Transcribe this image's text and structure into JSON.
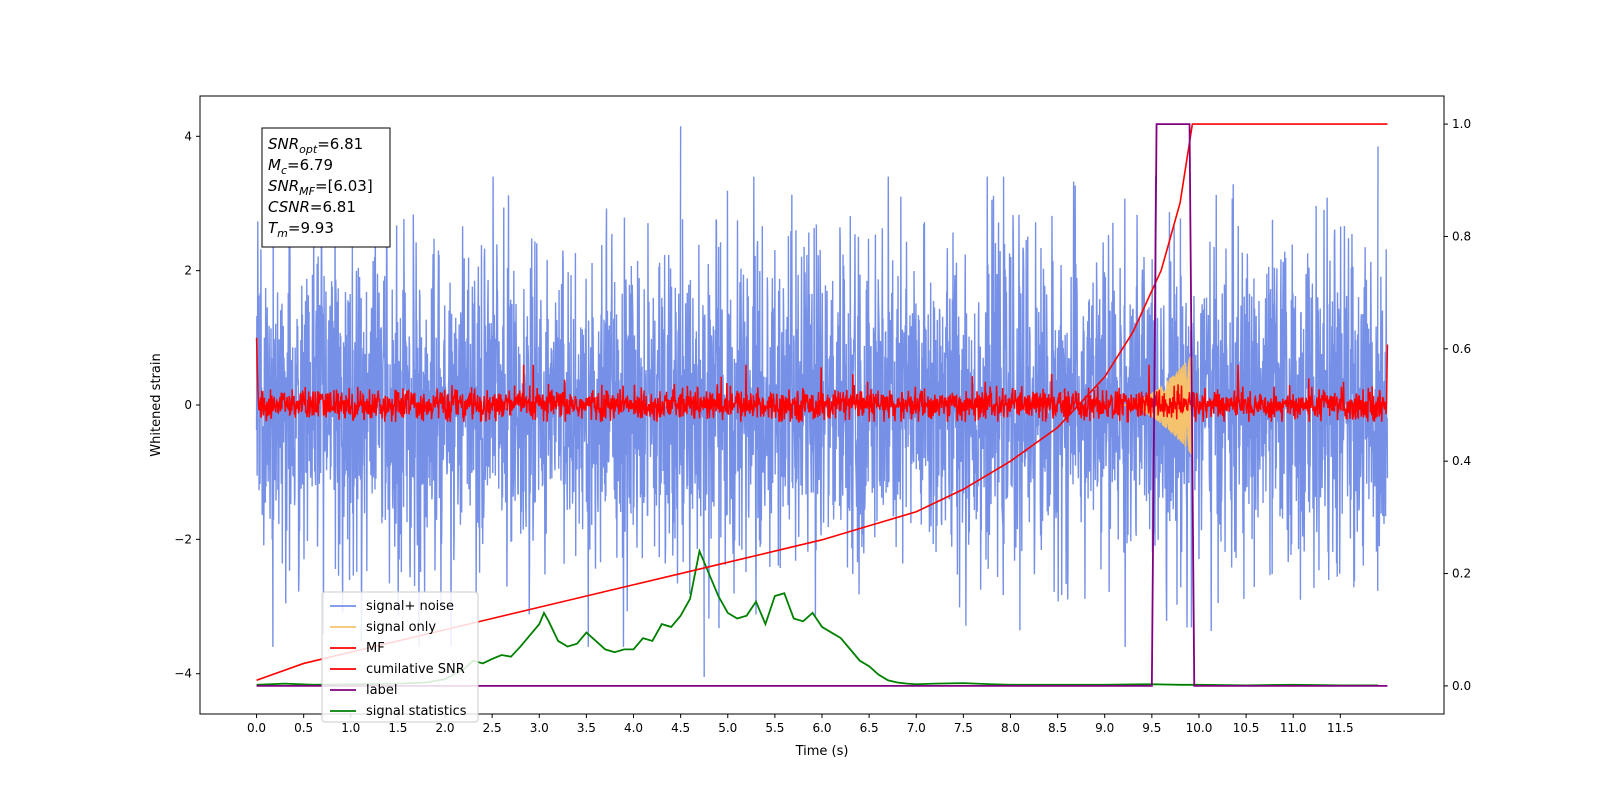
{
  "chart_data": {
    "type": "line",
    "xlabel": "Time (s)",
    "ylabel": "Whitened strain",
    "xlim": [
      -0.6,
      12.6
    ],
    "ylim": [
      -4.6,
      4.6
    ],
    "y2lim": [
      -0.05,
      1.05
    ],
    "x_ticks": [
      "0.0",
      "0.5",
      "1.0",
      "1.5",
      "2.0",
      "2.5",
      "3.0",
      "3.5",
      "4.0",
      "4.5",
      "5.0",
      "5.5",
      "6.0",
      "6.5",
      "7.0",
      "7.5",
      "8.0",
      "8.5",
      "9.0",
      "9.5",
      "10.0",
      "10.5",
      "11.0",
      "11.5"
    ],
    "y_ticks": [
      "4",
      "2",
      "0",
      "−2",
      "−4"
    ],
    "y2_ticks": [
      "1.0",
      "0.8",
      "0.6",
      "0.4",
      "0.2",
      "0.0"
    ],
    "grid": false,
    "legend_position": "lower-left",
    "info_box": [
      {
        "main": "SNR",
        "sub": "opt",
        "rest": "=6.81"
      },
      {
        "main": "M",
        "sub": "c",
        "rest": "=6.79"
      },
      {
        "main": "SNR",
        "sub": "MF",
        "rest": "=[6.03]"
      },
      {
        "main": "CSNR",
        "sub": "",
        "rest": "=6.81"
      },
      {
        "main": "T",
        "sub": "m",
        "rest": "=9.93"
      }
    ],
    "series": [
      {
        "name": "signal+ noise",
        "color": "#7590e6",
        "axis": "left",
        "noise_std": 1.2,
        "x_range": [
          0.0,
          12.0
        ],
        "spikes": [
          [
            4.5,
            4.15
          ],
          [
            4.75,
            -4.05
          ],
          [
            11.9,
            3.85
          ]
        ]
      },
      {
        "name": "signal only",
        "color": "#f5c26e",
        "axis": "left",
        "chirp": {
          "start": 9.2,
          "end": 9.93,
          "peak_amplitude": 0.75
        }
      },
      {
        "name": "MF",
        "color": "#ff0000",
        "axis": "left",
        "noise_std": 0.12,
        "start_value": 1.0,
        "end_value": 0.9
      },
      {
        "name": "cumilative SNR",
        "color": "#ff0000",
        "axis": "right",
        "x": [
          0.0,
          0.5,
          1.0,
          1.5,
          2.0,
          2.5,
          3.0,
          3.5,
          4.0,
          4.5,
          5.0,
          5.5,
          6.0,
          6.5,
          7.0,
          7.5,
          8.0,
          8.5,
          9.0,
          9.3,
          9.6,
          9.8,
          9.93,
          10.0,
          12.0
        ],
        "values": [
          0.01,
          0.04,
          0.06,
          0.08,
          0.1,
          0.12,
          0.14,
          0.16,
          0.18,
          0.2,
          0.22,
          0.24,
          0.26,
          0.285,
          0.31,
          0.35,
          0.4,
          0.46,
          0.55,
          0.63,
          0.74,
          0.86,
          1.0,
          1.0,
          1.0
        ]
      },
      {
        "name": "label",
        "color": "#800080",
        "axis": "right",
        "x": [
          0.0,
          9.5,
          9.55,
          9.9,
          9.95,
          12.0
        ],
        "values": [
          0.0,
          0.0,
          1.0,
          1.0,
          0.0,
          0.0
        ]
      },
      {
        "name": "signal statistics",
        "color": "#008000",
        "axis": "right",
        "x": [
          0.0,
          0.3,
          0.6,
          1.0,
          1.5,
          1.8,
          2.0,
          2.2,
          2.3,
          2.4,
          2.5,
          2.6,
          2.7,
          2.8,
          2.9,
          3.0,
          3.05,
          3.1,
          3.2,
          3.3,
          3.4,
          3.5,
          3.6,
          3.7,
          3.8,
          3.9,
          4.0,
          4.1,
          4.2,
          4.3,
          4.4,
          4.5,
          4.6,
          4.7,
          4.8,
          4.9,
          5.0,
          5.1,
          5.2,
          5.3,
          5.4,
          5.5,
          5.6,
          5.7,
          5.8,
          5.9,
          6.0,
          6.1,
          6.2,
          6.3,
          6.4,
          6.5,
          6.6,
          6.7,
          6.8,
          6.9,
          7.0,
          7.2,
          7.5,
          7.8,
          8.0,
          8.5,
          9.0,
          9.5,
          9.8,
          10.0,
          10.5,
          11.0,
          11.5,
          11.9
        ],
        "values": [
          0.002,
          0.004,
          0.002,
          0.003,
          0.004,
          0.006,
          0.012,
          0.03,
          0.045,
          0.04,
          0.048,
          0.055,
          0.052,
          0.07,
          0.09,
          0.11,
          0.13,
          0.115,
          0.08,
          0.07,
          0.075,
          0.095,
          0.08,
          0.065,
          0.06,
          0.065,
          0.065,
          0.085,
          0.08,
          0.11,
          0.105,
          0.125,
          0.155,
          0.24,
          0.2,
          0.16,
          0.13,
          0.12,
          0.125,
          0.15,
          0.11,
          0.16,
          0.165,
          0.12,
          0.115,
          0.13,
          0.105,
          0.095,
          0.085,
          0.065,
          0.045,
          0.035,
          0.02,
          0.01,
          0.006,
          0.004,
          0.003,
          0.004,
          0.005,
          0.003,
          0.002,
          0.002,
          0.002,
          0.003,
          0.002,
          0.002,
          0.001,
          0.002,
          0.001,
          0.001
        ]
      }
    ]
  }
}
